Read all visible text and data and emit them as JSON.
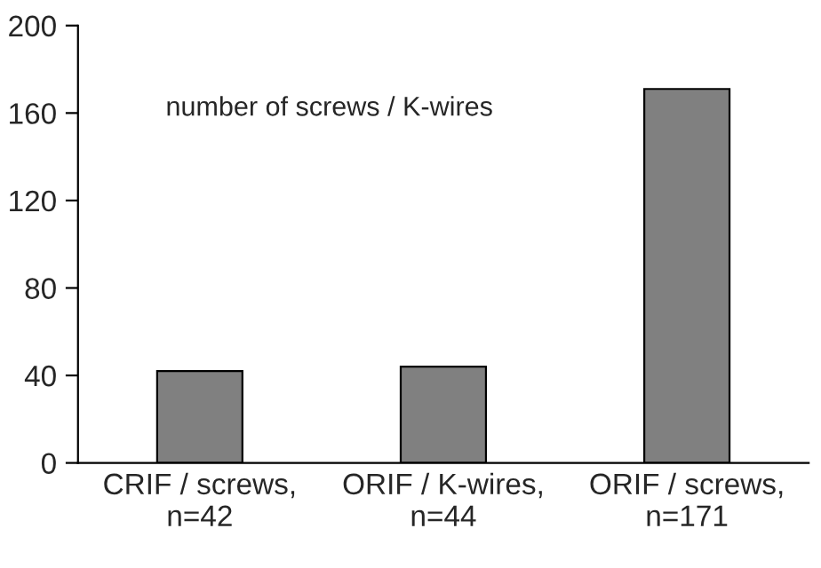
{
  "chart_data": {
    "type": "bar",
    "categories": [
      "CRIF / screws,\nn=42",
      "ORIF / K-wires,\nn=44",
      "ORIF / screws,\nn=171"
    ],
    "values": [
      42,
      44,
      171
    ],
    "color": "#808080",
    "ylim": [
      0,
      200
    ],
    "yticks": [
      0,
      40,
      80,
      120,
      160,
      200
    ],
    "grid": false,
    "legend": false,
    "annotations": [
      "number of screws / K-wires"
    ]
  }
}
